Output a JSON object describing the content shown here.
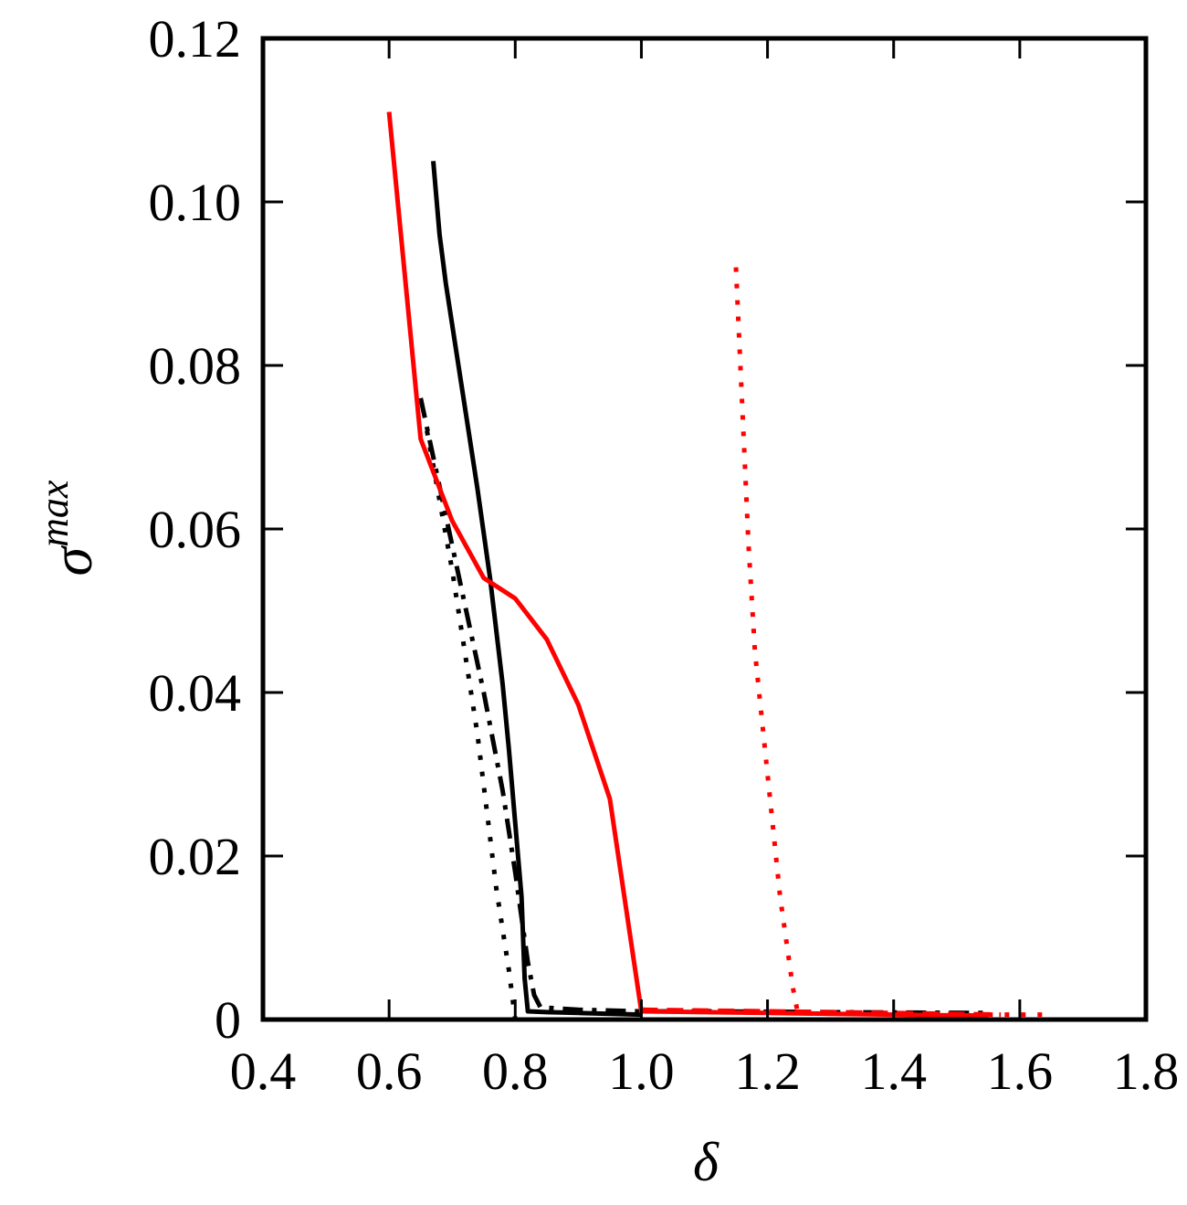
{
  "chart_data": {
    "type": "line",
    "title": "",
    "xlabel": "δ",
    "ylabel_base": "σ",
    "ylabel_sup": "max",
    "xlim": [
      0.4,
      1.8
    ],
    "ylim": [
      0,
      0.12
    ],
    "x_ticks": [
      0.4,
      0.6,
      0.8,
      1.0,
      1.2,
      1.4,
      1.6,
      1.8
    ],
    "x_tick_labels": [
      "0.4",
      "0.6",
      "0.8",
      "1.0",
      "1.2",
      "1.4",
      "1.6",
      "1.8"
    ],
    "y_ticks": [
      0,
      0.02,
      0.04,
      0.06,
      0.08,
      0.1,
      0.12
    ],
    "y_tick_labels": [
      "0",
      "0.02",
      "0.04",
      "0.06",
      "0.08",
      "0.10",
      "0.12"
    ],
    "grid": false,
    "legend": "none",
    "series": [
      {
        "color": "#000000",
        "style": "solid",
        "x": [
          0.67,
          0.68,
          0.69,
          0.7,
          0.72,
          0.74,
          0.76,
          0.78,
          0.79,
          0.8,
          0.81,
          0.815,
          0.82,
          0.85,
          0.9,
          0.95,
          1.0
        ],
        "y": [
          0.105,
          0.096,
          0.09,
          0.085,
          0.075,
          0.065,
          0.054,
          0.041,
          0.033,
          0.024,
          0.015,
          0.005,
          0.001,
          0.0009,
          0.0008,
          0.0007,
          0.0006
        ]
      },
      {
        "color": "#000000",
        "style": "dashdot",
        "x": [
          0.65,
          0.7,
          0.75,
          0.78,
          0.8,
          0.82,
          0.83,
          0.84,
          0.9,
          1.0,
          1.1,
          1.3,
          1.55
        ],
        "y": [
          0.076,
          0.058,
          0.04,
          0.028,
          0.018,
          0.007,
          0.003,
          0.0015,
          0.0012,
          0.001,
          0.001,
          0.0009,
          0.0008
        ]
      },
      {
        "color": "#000000",
        "style": "dotted",
        "x": [
          0.66,
          0.7,
          0.74,
          0.77,
          0.79,
          0.8
        ],
        "y": [
          0.072,
          0.055,
          0.035,
          0.016,
          0.006,
          0.0
        ]
      },
      {
        "color": "#ff0000",
        "style": "solid",
        "x": [
          0.6,
          0.65,
          0.7,
          0.75,
          0.8,
          0.85,
          0.9,
          0.95,
          1.0,
          1.1,
          1.2,
          1.3,
          1.4,
          1.5,
          1.55
        ],
        "y": [
          0.111,
          0.071,
          0.061,
          0.054,
          0.0515,
          0.0465,
          0.0385,
          0.027,
          0.001,
          0.0009,
          0.0008,
          0.0007,
          0.0006,
          0.0005,
          0.0005
        ]
      },
      {
        "color": "#ff0000",
        "style": "dotted",
        "x": [
          1.15,
          1.16,
          1.17,
          1.18,
          1.2,
          1.22,
          1.24,
          1.25
        ],
        "y": [
          0.092,
          0.075,
          0.058,
          0.045,
          0.03,
          0.015,
          0.004,
          0.0
        ]
      },
      {
        "color": "#ff0000",
        "style": "dashed",
        "x": [
          1.0,
          1.2,
          1.4,
          1.57
        ],
        "y": [
          0.0012,
          0.001,
          0.0008,
          0.0006
        ]
      },
      {
        "color": "#ff0000",
        "style": "dotted",
        "x": [
          1.55,
          1.6,
          1.65
        ],
        "y": [
          0.0006,
          0.0006,
          0.0006
        ]
      }
    ]
  }
}
